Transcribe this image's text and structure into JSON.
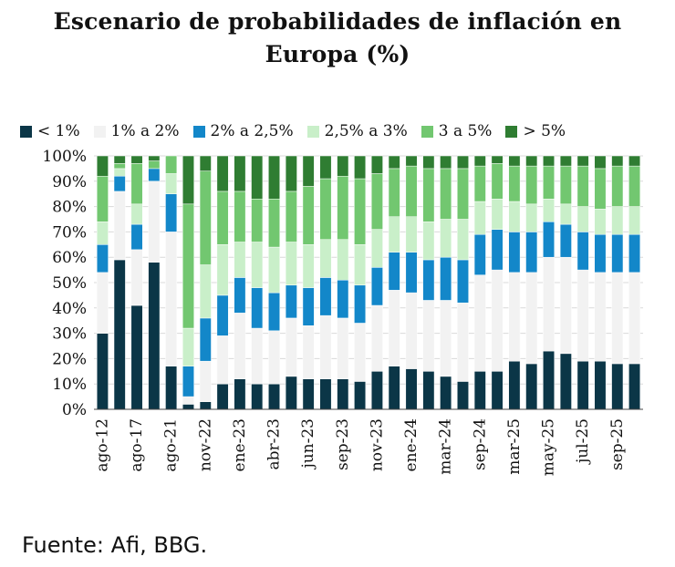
{
  "title": "Escenario de probabilidades de inflación en Europa (%)",
  "source": "Fuente: Afi, BBG.",
  "chart_data": {
    "type": "bar",
    "stacked": true,
    "title": "Escenario de probabilidades de inflación en Europa (%)",
    "xlabel": "",
    "ylabel": "",
    "ylim": [
      0,
      100
    ],
    "y_ticks": [
      "0%",
      "10%",
      "20%",
      "30%",
      "40%",
      "50%",
      "60%",
      "70%",
      "80%",
      "90%",
      "100%"
    ],
    "grid": true,
    "legend_position": "top",
    "categories": [
      "ago-12",
      "",
      "ago-17",
      "",
      "ago-21",
      "",
      "nov-22",
      "",
      "ene-23",
      "",
      "abr-23",
      "",
      "jun-23",
      "",
      "sep-23",
      "",
      "nov-23",
      "",
      "ene-24",
      "",
      "mar-24",
      "",
      "sep-24",
      "",
      "mar-25",
      "",
      "may-25",
      "",
      "jul-25",
      "",
      "sep-25",
      ""
    ],
    "series": [
      {
        "name": "< 1%",
        "color": "#0b3647",
        "values": [
          30,
          59,
          41,
          58,
          17,
          2,
          3,
          10,
          12,
          10,
          10,
          13,
          12,
          12,
          12,
          11,
          15,
          17,
          16,
          15,
          13,
          11,
          15,
          15,
          19,
          18,
          23,
          22,
          19,
          19,
          18,
          18
        ]
      },
      {
        "name": "1% a 2%",
        "color": "#f2f2f2",
        "values": [
          24,
          27,
          22,
          32,
          53,
          3,
          16,
          19,
          26,
          22,
          21,
          23,
          21,
          25,
          24,
          23,
          26,
          30,
          30,
          28,
          30,
          31,
          38,
          40,
          35,
          36,
          37,
          38,
          36,
          35,
          36,
          36
        ]
      },
      {
        "name": "2% a 2,5%",
        "color": "#1387c9",
        "values": [
          11,
          6,
          10,
          5,
          15,
          12,
          17,
          16,
          14,
          16,
          15,
          13,
          15,
          15,
          15,
          15,
          15,
          15,
          16,
          16,
          17,
          17,
          16,
          16,
          16,
          16,
          14,
          13,
          15,
          15,
          15,
          15
        ]
      },
      {
        "name": "2,5% a 3%",
        "color": "#c9efc9",
        "values": [
          9,
          3,
          8,
          0,
          8,
          15,
          21,
          20,
          14,
          18,
          18,
          17,
          17,
          15,
          16,
          16,
          15,
          14,
          14,
          15,
          15,
          16,
          13,
          12,
          12,
          11,
          9,
          8,
          10,
          10,
          11,
          11
        ]
      },
      {
        "name": "3 a 5%",
        "color": "#72c770",
        "values": [
          18,
          2,
          16,
          3,
          7,
          49,
          37,
          21,
          20,
          17,
          19,
          20,
          23,
          24,
          25,
          26,
          22,
          19,
          20,
          21,
          20,
          20,
          14,
          14,
          14,
          15,
          13,
          15,
          16,
          16,
          16,
          16
        ]
      },
      {
        "name": "> 5%",
        "color": "#2f7d32",
        "values": [
          8,
          3,
          3,
          2,
          0,
          19,
          6,
          14,
          14,
          17,
          17,
          14,
          12,
          9,
          8,
          9,
          7,
          5,
          4,
          5,
          5,
          5,
          4,
          3,
          4,
          4,
          4,
          4,
          4,
          5,
          4,
          4
        ]
      }
    ]
  }
}
